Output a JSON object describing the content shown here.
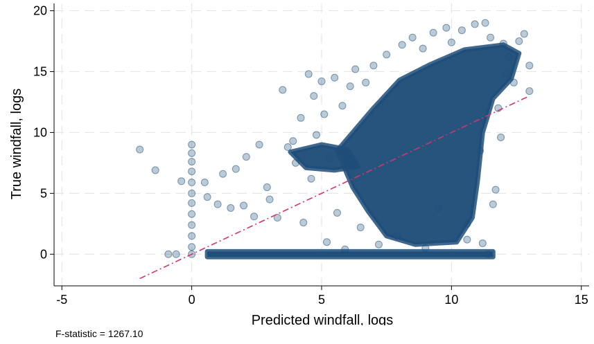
{
  "chart_data": {
    "type": "scatter",
    "title": "",
    "xlabel": "Predicted windfall, logs",
    "ylabel": "True windfall, logs",
    "xlim": [
      -5.3,
      15.3
    ],
    "ylim": [
      -2.6,
      20.6
    ],
    "xticks": [
      -5,
      0,
      5,
      10,
      15
    ],
    "xtick_labels": [
      "-5",
      "0",
      "5",
      "10",
      "15"
    ],
    "yticks": [
      0,
      5,
      10,
      15,
      20
    ],
    "ytick_labels": [
      "0",
      "5",
      "10",
      "15",
      "20"
    ],
    "grid": true,
    "legend": "none",
    "colors": {
      "marker": "#1f4e79",
      "fit_line": "#d6336c",
      "grid": "#e6e6e6"
    },
    "series": [
      {
        "kind": "scatter",
        "points": [
          [
            -2.0,
            8.6
          ],
          [
            -1.4,
            6.9
          ],
          [
            -0.4,
            6.0
          ],
          [
            -0.9,
            0.0
          ],
          [
            -0.6,
            0.0
          ],
          [
            0.0,
            9.0
          ],
          [
            0.0,
            8.3
          ],
          [
            0.0,
            7.6
          ],
          [
            0.0,
            6.8
          ],
          [
            0.0,
            5.9
          ],
          [
            0.0,
            5.0
          ],
          [
            0.0,
            4.2
          ],
          [
            0.0,
            3.3
          ],
          [
            0.0,
            2.4
          ],
          [
            0.0,
            1.5
          ],
          [
            0.0,
            0.6
          ],
          [
            0.0,
            0.0
          ],
          [
            0.5,
            5.9
          ],
          [
            0.6,
            4.7
          ],
          [
            1.0,
            4.1
          ],
          [
            1.2,
            6.6
          ],
          [
            1.5,
            3.8
          ],
          [
            1.7,
            7.0
          ],
          [
            2.0,
            4.0
          ],
          [
            2.1,
            8.0
          ],
          [
            2.4,
            3.1
          ],
          [
            2.6,
            9.0
          ],
          [
            2.9,
            5.5
          ],
          [
            3.0,
            4.5
          ],
          [
            3.3,
            3.0
          ],
          [
            3.5,
            13.5
          ],
          [
            3.7,
            8.8
          ],
          [
            3.9,
            9.3
          ],
          [
            4.0,
            7.5
          ],
          [
            4.2,
            11.2
          ],
          [
            4.3,
            2.6
          ],
          [
            4.5,
            14.8
          ],
          [
            4.6,
            6.2
          ],
          [
            4.7,
            13.0
          ],
          [
            4.8,
            9.8
          ],
          [
            5.0,
            14.2
          ],
          [
            5.1,
            11.5
          ],
          [
            5.2,
            1.0
          ],
          [
            5.3,
            7.9
          ],
          [
            5.5,
            14.5
          ],
          [
            5.6,
            3.4
          ],
          [
            5.8,
            12.2
          ],
          [
            5.9,
            0.4
          ],
          [
            6.1,
            13.8
          ],
          [
            6.3,
            15.2
          ],
          [
            6.5,
            2.2
          ],
          [
            6.7,
            14.1
          ],
          [
            7.0,
            15.5
          ],
          [
            7.2,
            0.8
          ],
          [
            7.5,
            16.4
          ],
          [
            7.9,
            1.5
          ],
          [
            8.1,
            17.2
          ],
          [
            8.5,
            17.8
          ],
          [
            8.9,
            16.9
          ],
          [
            9.0,
            0.5
          ],
          [
            9.3,
            18.2
          ],
          [
            9.5,
            3.8
          ],
          [
            9.8,
            18.6
          ],
          [
            10.0,
            17.4
          ],
          [
            10.4,
            18.4
          ],
          [
            10.6,
            1.2
          ],
          [
            10.9,
            18.9
          ],
          [
            11.1,
            8.5
          ],
          [
            11.3,
            19.0
          ],
          [
            11.5,
            17.8
          ],
          [
            11.7,
            5.3
          ],
          [
            11.8,
            12.0
          ],
          [
            12.0,
            17.3
          ],
          [
            12.2,
            16.2
          ],
          [
            12.4,
            14.1
          ],
          [
            12.6,
            17.5
          ],
          [
            12.8,
            18.1
          ],
          [
            13.0,
            15.5
          ],
          [
            13.0,
            13.4
          ],
          [
            11.4,
            0.0
          ],
          [
            10.6,
            2.5
          ],
          [
            11.2,
            0.9
          ],
          [
            11.6,
            4.1
          ],
          [
            11.9,
            9.6
          ],
          [
            12.1,
            14.8
          ]
        ]
      },
      {
        "kind": "fit-line",
        "points": [
          [
            -2.0,
            -2.0
          ],
          [
            13.0,
            13.0
          ]
        ]
      }
    ]
  },
  "footnote": "F-statistic = 1267.10"
}
